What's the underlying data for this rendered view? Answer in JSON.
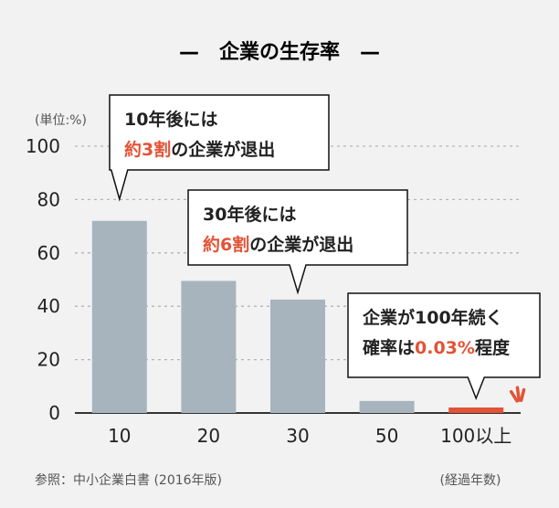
{
  "chart_data": {
    "type": "bar",
    "title": "—　企業の生存率　—",
    "unit_label": "(単位:%)",
    "categories": [
      "10",
      "20",
      "30",
      "50",
      "100以上"
    ],
    "values": [
      72,
      49.5,
      42.5,
      4.5,
      0.03
    ],
    "ylim": [
      0,
      100
    ],
    "yticks": [
      "0",
      "20",
      "40",
      "60",
      "80",
      "100"
    ],
    "grid": true,
    "xlabel": "(経過年数)",
    "source": "参照：中小企業白書 (2016年版)",
    "annotations": [
      {
        "line1": "10年後には",
        "highlight": "約3割",
        "rest": "の企業が退出",
        "target": "10"
      },
      {
        "line1": "30年後には",
        "highlight": "約6割",
        "rest": "の企業が退出",
        "target": "30"
      },
      {
        "line1": "企業が100年続く",
        "line2_prefix": "確率は",
        "highlight": "0.03%",
        "rest": "程度",
        "target": "100以上"
      }
    ]
  },
  "colors": {
    "bar": "#a7b4be",
    "highlight_bar": "#e35336",
    "accent_text": "#e35336",
    "grid": "#b5b5b5",
    "text": "#222222",
    "muted": "#555555",
    "background": "#f2f2f2",
    "callout_fill": "#ffffff",
    "callout_stroke": "#111111"
  }
}
